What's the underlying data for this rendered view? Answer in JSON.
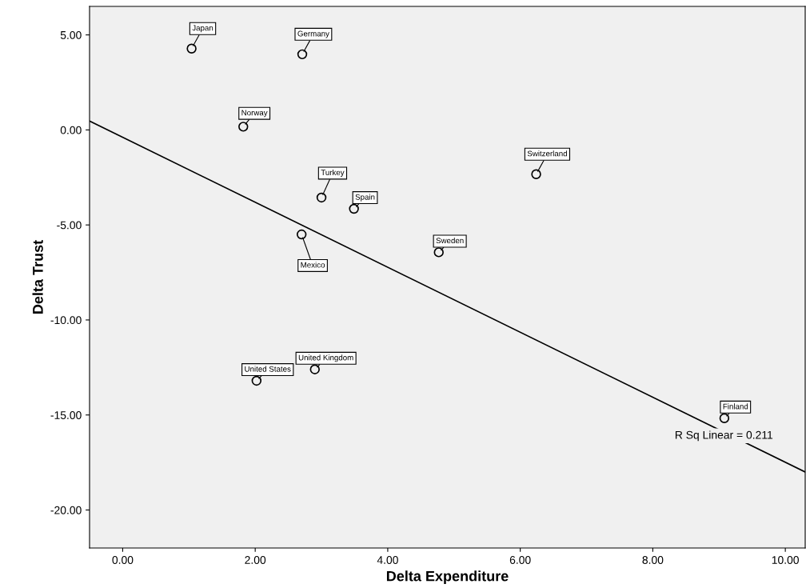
{
  "chart_data": {
    "type": "scatter",
    "xlabel": "Delta Expenditure",
    "ylabel": "Delta Trust",
    "xlim": [
      -0.5,
      10.3
    ],
    "ylim": [
      -22,
      6.5
    ],
    "xticks": [
      {
        "value": 0,
        "label": "0.00"
      },
      {
        "value": 2,
        "label": "2.00"
      },
      {
        "value": 4,
        "label": "4.00"
      },
      {
        "value": 6,
        "label": "6.00"
      },
      {
        "value": 8,
        "label": "8.00"
      },
      {
        "value": 10,
        "label": "10.00"
      }
    ],
    "yticks": [
      {
        "value": 5,
        "label": "5.00"
      },
      {
        "value": 0,
        "label": "0.00"
      },
      {
        "value": -5,
        "label": "-5.00"
      },
      {
        "value": -10,
        "label": "-10.00"
      },
      {
        "value": -15,
        "label": "-15.00"
      },
      {
        "value": -20,
        "label": "-20.00"
      }
    ],
    "grid": false,
    "legend": false,
    "series": [
      {
        "marker": "circle",
        "color": "#000000",
        "x": [
          1.04,
          2.71,
          1.82,
          3.0,
          3.49,
          2.7,
          6.24,
          4.77,
          2.9,
          2.02,
          9.08
        ],
        "values": [
          4.28,
          3.98,
          0.17,
          -3.56,
          -4.15,
          -5.5,
          -2.33,
          -6.44,
          -12.6,
          -13.2,
          -15.17
        ]
      },
      {
        "type": "line",
        "marker": "none",
        "color": "#000000",
        "x": [
          -0.5,
          10.3
        ],
        "values": [
          0.47,
          -18.0
        ]
      }
    ],
    "annotations": [
      {
        "text": "Japan",
        "x": 1.04,
        "y": 4.28
      },
      {
        "text": "Germany",
        "x": 2.71,
        "y": 3.98
      },
      {
        "text": "Norway",
        "x": 1.82,
        "y": 0.17
      },
      {
        "text": "Turkey",
        "x": 3.0,
        "y": -3.56
      },
      {
        "text": "Spain",
        "x": 3.49,
        "y": -4.15
      },
      {
        "text": "Mexico",
        "x": 2.7,
        "y": -5.5
      },
      {
        "text": "Switzerland",
        "x": 6.24,
        "y": -2.33
      },
      {
        "text": "Sweden",
        "x": 4.77,
        "y": -6.44
      },
      {
        "text": "United Kingdom",
        "x": 2.9,
        "y": -12.6
      },
      {
        "text": "United States",
        "x": 2.02,
        "y": -13.2
      },
      {
        "text": "Finland",
        "x": 9.08,
        "y": -15.17
      },
      "R Sq Linear = 0.211"
    ]
  }
}
